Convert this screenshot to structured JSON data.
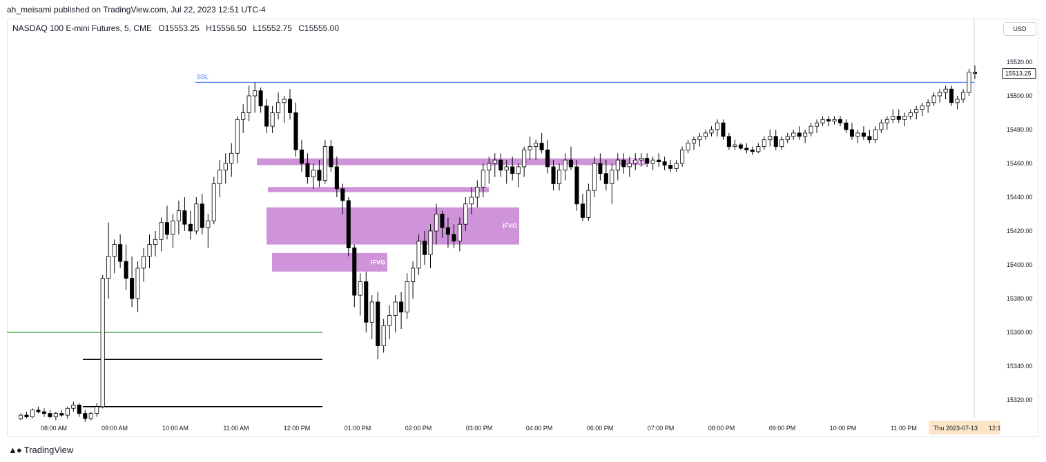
{
  "header": {
    "publish_text": "ah_meisami published on TradingView.com, Jul 22, 2023 12:51 UTC-4"
  },
  "legend": {
    "symbol": "NASDAQ 100 E-mini Futures, 5, CME",
    "open": "O15553.25",
    "high": "H15556.50",
    "low": "L15552.75",
    "close": "C15555.00"
  },
  "currency_label": "USD",
  "footer": {
    "logo_text": "TradingView"
  },
  "colors": {
    "up_fill": "#ffffff",
    "down_fill": "#000000",
    "wick": "#000000",
    "fvg_zone": "#ce93d8",
    "ssl_line": "#2962ff",
    "green_line": "#4caf50",
    "black_line": "#000000",
    "crosshair_tag": "#fbe5c6"
  },
  "chart_data": {
    "type": "candlestick",
    "y_axis": {
      "min": 15300,
      "max": 15530,
      "ticks": [
        15320,
        15340,
        15360,
        15380,
        15400,
        15420,
        15440,
        15460,
        15480,
        15500,
        15520
      ],
      "tick_labels": [
        "15320.00",
        "15340.00",
        "15360.00",
        "15380.00",
        "15400.00",
        "15420.00",
        "15440.00",
        "15460.00",
        "15480.00",
        "15500.00",
        "15520.00"
      ]
    },
    "x_axis": {
      "labels": [
        "08:00 AM",
        "09:00 AM",
        "10:00 AM",
        "11:00 AM",
        "12:00 PM",
        "01:00 PM",
        "02:00 PM",
        "03:00 PM",
        "04:00 PM",
        "06:00 PM",
        "07:00 PM",
        "08:00 PM",
        "09:00 PM",
        "10:00 PM",
        "11:00 PM"
      ]
    },
    "current_price": {
      "value": 15513.25,
      "label": "15513.25"
    },
    "crosshair_date_label": "Thu 2023-07-13",
    "crosshair_time_label": "12:1",
    "levels": [
      {
        "name": "SSL",
        "label": "SSL",
        "price": 15508,
        "color": "ssl"
      },
      {
        "name": "green",
        "label": "",
        "price": 15360,
        "color": "green"
      },
      {
        "name": "black-upper",
        "label": "",
        "price": 15344,
        "color": "black"
      },
      {
        "name": "black-lower",
        "label": "",
        "price": 15316,
        "color": "black"
      }
    ],
    "zones": [
      {
        "label": "IFVG",
        "top": 15463,
        "bottom": 15459
      },
      {
        "label": "",
        "top": 15446,
        "bottom": 15443
      },
      {
        "label": "IFVG",
        "top": 15434,
        "bottom": 15412
      },
      {
        "label": "IFVG",
        "top": 15407,
        "bottom": 15396
      }
    ],
    "candles": [
      [
        15309,
        15312,
        15308,
        15311
      ],
      [
        15311,
        15313,
        15309,
        15310
      ],
      [
        15310,
        15315,
        15309,
        15314
      ],
      [
        15314,
        15316,
        15312,
        15313
      ],
      [
        15313,
        15315,
        15310,
        15312
      ],
      [
        15312,
        15314,
        15309,
        15310
      ],
      [
        15310,
        15313,
        15308,
        15312
      ],
      [
        15312,
        15314,
        15310,
        15311
      ],
      [
        15311,
        15316,
        15309,
        15315
      ],
      [
        15315,
        15319,
        15313,
        15317
      ],
      [
        15317,
        15318,
        15310,
        15312
      ],
      [
        15312,
        15314,
        15307,
        15309
      ],
      [
        15309,
        15313,
        15308,
        15312
      ],
      [
        15312,
        15318,
        15310,
        15316
      ],
      [
        15316,
        15394,
        15315,
        15392
      ],
      [
        15392,
        15425,
        15380,
        15405
      ],
      [
        15405,
        15415,
        15395,
        15412
      ],
      [
        15412,
        15418,
        15398,
        15402
      ],
      [
        15402,
        15412,
        15385,
        15392
      ],
      [
        15392,
        15405,
        15375,
        15380
      ],
      [
        15380,
        15402,
        15372,
        15398
      ],
      [
        15398,
        15410,
        15390,
        15405
      ],
      [
        15405,
        15418,
        15398,
        15412
      ],
      [
        15412,
        15420,
        15405,
        15415
      ],
      [
        15415,
        15428,
        15408,
        15425
      ],
      [
        15425,
        15435,
        15415,
        15418
      ],
      [
        15418,
        15430,
        15410,
        15426
      ],
      [
        15426,
        15438,
        15418,
        15432
      ],
      [
        15432,
        15440,
        15420,
        15424
      ],
      [
        15424,
        15432,
        15415,
        15420
      ],
      [
        15420,
        15440,
        15418,
        15436
      ],
      [
        15436,
        15442,
        15418,
        15422
      ],
      [
        15422,
        15430,
        15410,
        15426
      ],
      [
        15426,
        15452,
        15424,
        15448
      ],
      [
        15448,
        15462,
        15440,
        15456
      ],
      [
        15456,
        15466,
        15448,
        15460
      ],
      [
        15460,
        15472,
        15452,
        15466
      ],
      [
        15466,
        15488,
        15460,
        15486
      ],
      [
        15486,
        15495,
        15478,
        15490
      ],
      [
        15490,
        15506,
        15485,
        15500
      ],
      [
        15500,
        15508,
        15490,
        15503
      ],
      [
        15503,
        15505,
        15490,
        15494
      ],
      [
        15494,
        15498,
        15478,
        15482
      ],
      [
        15482,
        15494,
        15478,
        15490
      ],
      [
        15490,
        15502,
        15486,
        15496
      ],
      [
        15496,
        15500,
        15484,
        15498
      ],
      [
        15498,
        15504,
        15486,
        15490
      ],
      [
        15490,
        15496,
        15464,
        15468
      ],
      [
        15468,
        15474,
        15455,
        15460
      ],
      [
        15460,
        15466,
        15448,
        15452
      ],
      [
        15452,
        15460,
        15445,
        15456
      ],
      [
        15456,
        15462,
        15446,
        15450
      ],
      [
        15450,
        15474,
        15448,
        15470
      ],
      [
        15470,
        15474,
        15455,
        15458
      ],
      [
        15458,
        15464,
        15440,
        15445
      ],
      [
        15445,
        15448,
        15430,
        15438
      ],
      [
        15438,
        15440,
        15405,
        15410
      ],
      [
        15410,
        15412,
        15375,
        15382
      ],
      [
        15382,
        15395,
        15370,
        15390
      ],
      [
        15390,
        15396,
        15360,
        15366
      ],
      [
        15366,
        15382,
        15356,
        15378
      ],
      [
        15378,
        15384,
        15344,
        15352
      ],
      [
        15352,
        15368,
        15348,
        15364
      ],
      [
        15364,
        15376,
        15356,
        15370
      ],
      [
        15370,
        15382,
        15360,
        15378
      ],
      [
        15378,
        15384,
        15362,
        15372
      ],
      [
        15372,
        15395,
        15368,
        15390
      ],
      [
        15390,
        15402,
        15380,
        15398
      ],
      [
        15398,
        15418,
        15394,
        15414
      ],
      [
        15414,
        15420,
        15400,
        15406
      ],
      [
        15406,
        15424,
        15398,
        15420
      ],
      [
        15420,
        15436,
        15412,
        15430
      ],
      [
        15430,
        15432,
        15416,
        15422
      ],
      [
        15422,
        15428,
        15410,
        15418
      ],
      [
        15418,
        15424,
        15410,
        15414
      ],
      [
        15414,
        15428,
        15408,
        15424
      ],
      [
        15424,
        15440,
        15420,
        15436
      ],
      [
        15436,
        15446,
        15430,
        15440
      ],
      [
        15440,
        15450,
        15434,
        15446
      ],
      [
        15446,
        15460,
        15440,
        15456
      ],
      [
        15456,
        15464,
        15448,
        15460
      ],
      [
        15460,
        15466,
        15452,
        15462
      ],
      [
        15462,
        15466,
        15452,
        15456
      ],
      [
        15456,
        15462,
        15448,
        15458
      ],
      [
        15458,
        15464,
        15450,
        15454
      ],
      [
        15454,
        15460,
        15446,
        15458
      ],
      [
        15458,
        15470,
        15452,
        15468
      ],
      [
        15468,
        15476,
        15462,
        15470
      ],
      [
        15470,
        15474,
        15462,
        15472
      ],
      [
        15472,
        15478,
        15466,
        15468
      ],
      [
        15468,
        15474,
        15454,
        15458
      ],
      [
        15458,
        15462,
        15444,
        15448
      ],
      [
        15448,
        15460,
        15444,
        15456
      ],
      [
        15456,
        15466,
        15450,
        15462
      ],
      [
        15462,
        15470,
        15456,
        15458
      ],
      [
        15458,
        15462,
        15432,
        15436
      ],
      [
        15436,
        15442,
        15426,
        15428
      ],
      [
        15428,
        15448,
        15426,
        15444
      ],
      [
        15444,
        15464,
        15440,
        15460
      ],
      [
        15460,
        15466,
        15450,
        15454
      ],
      [
        15454,
        15462,
        15444,
        15448
      ],
      [
        15448,
        15460,
        15436,
        15456
      ],
      [
        15456,
        15466,
        15450,
        15462
      ],
      [
        15462,
        15466,
        15454,
        15458
      ],
      [
        15458,
        15464,
        15452,
        15460
      ],
      [
        15460,
        15466,
        15456,
        15462
      ],
      [
        15462,
        15466,
        15458,
        15463
      ],
      [
        15463,
        15466,
        15458,
        15460
      ],
      [
        15460,
        15464,
        15456,
        15462
      ],
      [
        15462,
        15466,
        15458,
        15461
      ],
      [
        15461,
        15464,
        15456,
        15459
      ],
      [
        15459,
        15462,
        15455,
        15457
      ],
      [
        15457,
        15462,
        15455,
        15460
      ],
      [
        15460,
        15470,
        15458,
        15468
      ],
      [
        15468,
        15474,
        15466,
        15472
      ],
      [
        15472,
        15476,
        15468,
        15474
      ],
      [
        15474,
        15478,
        15470,
        15476
      ],
      [
        15476,
        15480,
        15474,
        15478
      ],
      [
        15478,
        15482,
        15476,
        15480
      ],
      [
        15480,
        15486,
        15476,
        15484
      ],
      [
        15484,
        15486,
        15474,
        15476
      ],
      [
        15476,
        15478,
        15468,
        15470
      ],
      [
        15470,
        15474,
        15468,
        15471
      ],
      [
        15471,
        15472,
        15468,
        15469
      ],
      [
        15469,
        15472,
        15466,
        15468
      ],
      [
        15468,
        15470,
        15465,
        15467
      ],
      [
        15467,
        15472,
        15466,
        15470
      ],
      [
        15470,
        15476,
        15468,
        15474
      ],
      [
        15474,
        15480,
        15470,
        15476
      ],
      [
        15476,
        15480,
        15468,
        15470
      ],
      [
        15470,
        15476,
        15468,
        15474
      ],
      [
        15474,
        15478,
        15472,
        15476
      ],
      [
        15476,
        15480,
        15474,
        15478
      ],
      [
        15478,
        15482,
        15474,
        15476
      ],
      [
        15476,
        15480,
        15472,
        15478
      ],
      [
        15478,
        15484,
        15476,
        15482
      ],
      [
        15482,
        15486,
        15478,
        15484
      ],
      [
        15484,
        15488,
        15482,
        15486
      ],
      [
        15486,
        15488,
        15482,
        15485
      ],
      [
        15485,
        15488,
        15483,
        15486
      ],
      [
        15486,
        15488,
        15482,
        15484
      ],
      [
        15484,
        15486,
        15478,
        15480
      ],
      [
        15480,
        15484,
        15474,
        15476
      ],
      [
        15476,
        15480,
        15472,
        15478
      ],
      [
        15478,
        15482,
        15474,
        15476
      ],
      [
        15476,
        15480,
        15472,
        15474
      ],
      [
        15474,
        15482,
        15472,
        15480
      ],
      [
        15480,
        15486,
        15478,
        15484
      ],
      [
        15484,
        15488,
        15480,
        15486
      ],
      [
        15486,
        15492,
        15484,
        15488
      ],
      [
        15488,
        15492,
        15484,
        15486
      ],
      [
        15486,
        15490,
        15482,
        15488
      ],
      [
        15488,
        15492,
        15486,
        15490
      ],
      [
        15490,
        15494,
        15486,
        15492
      ],
      [
        15492,
        15496,
        15488,
        15494
      ],
      [
        15494,
        15498,
        15490,
        15496
      ],
      [
        15496,
        15502,
        15494,
        15500
      ],
      [
        15500,
        15504,
        15496,
        15502
      ],
      [
        15502,
        15506,
        15498,
        15504
      ],
      [
        15504,
        15506,
        15494,
        15496
      ],
      [
        15496,
        15500,
        15492,
        15498
      ],
      [
        15498,
        15504,
        15496,
        15502
      ],
      [
        15502,
        15516,
        15500,
        15514
      ],
      [
        15514,
        15518,
        15510,
        15513.25
      ]
    ]
  }
}
